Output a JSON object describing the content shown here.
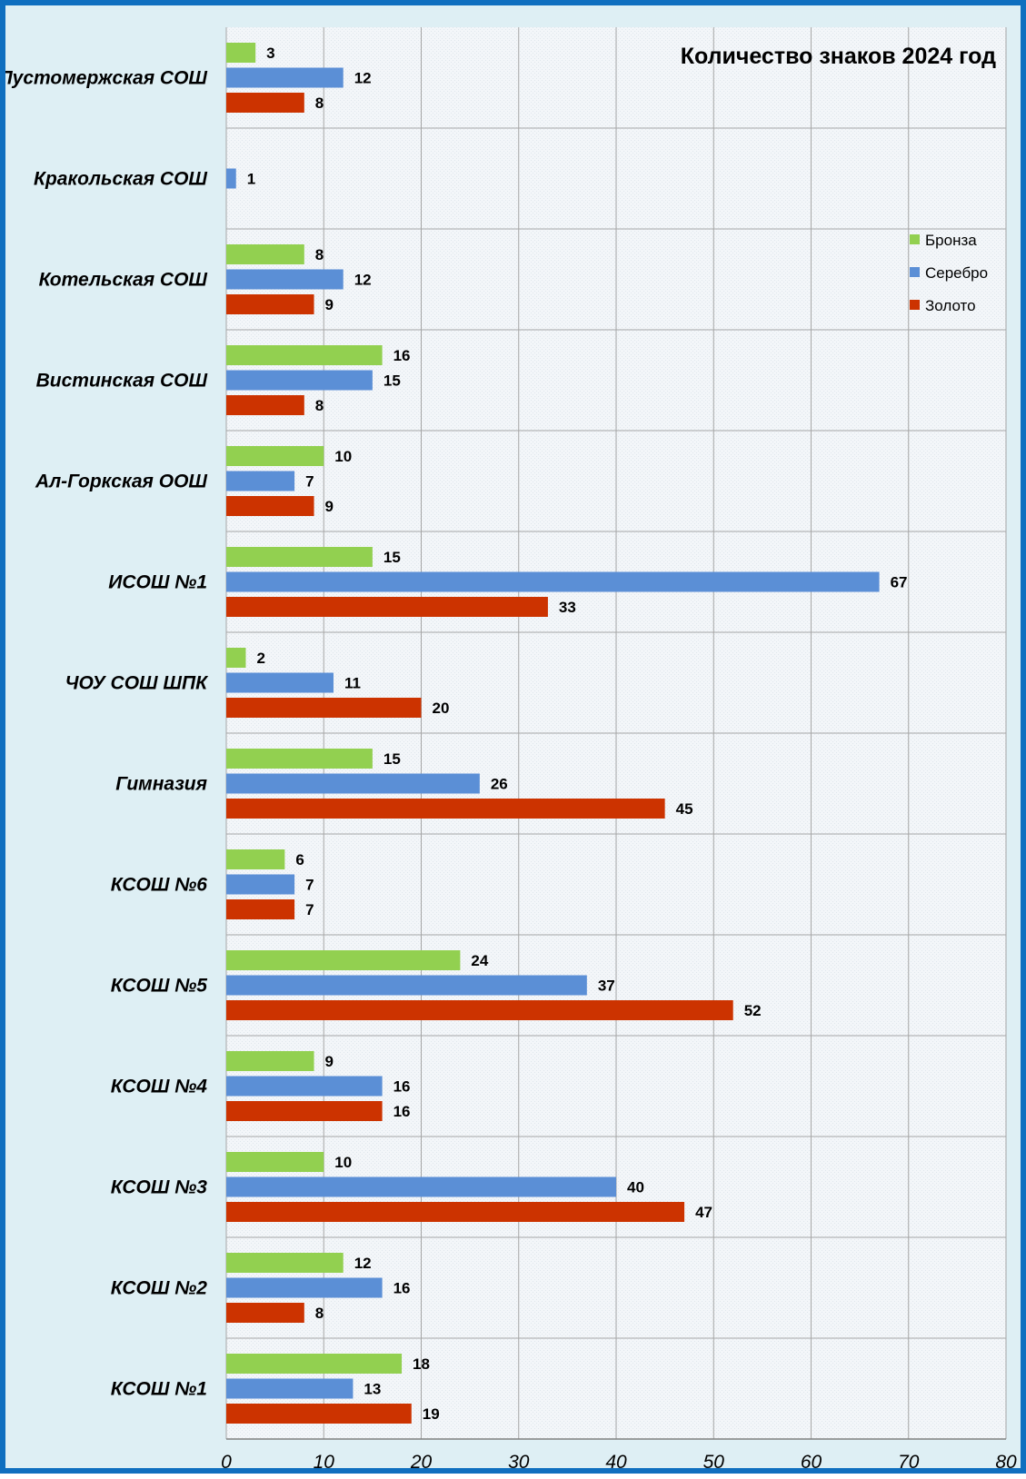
{
  "chart_data": {
    "type": "bar",
    "orientation": "horizontal",
    "title": "Количество знаков 2024 год",
    "xlabel": "",
    "ylabel": "",
    "xlim": [
      0,
      80
    ],
    "x_ticks": [
      0,
      10,
      20,
      30,
      40,
      50,
      60,
      70,
      80
    ],
    "grid": true,
    "legend_position": "right",
    "categories": [
      "КСОШ №1",
      "КСОШ №2",
      "КСОШ №3",
      "КСОШ №4",
      "КСОШ №5",
      "КСОШ №6",
      "Гимназия",
      "ЧОУ СОШ ШПК",
      "ИСОШ №1",
      "Ал-Горкская ООШ",
      "Вистинская  СОШ",
      "Котельская СОШ",
      "Кракольская СОШ",
      "Пустомержская  СОШ"
    ],
    "series": [
      {
        "name": "Золото",
        "color": "#cc3300",
        "values": [
          19,
          8,
          47,
          16,
          52,
          7,
          45,
          20,
          33,
          9,
          8,
          9,
          null,
          8
        ]
      },
      {
        "name": "Серебро",
        "color": "#5b8fd6",
        "values": [
          13,
          16,
          40,
          16,
          37,
          7,
          26,
          11,
          67,
          7,
          15,
          12,
          1,
          12
        ]
      },
      {
        "name": "Бронза",
        "color": "#92d050",
        "values": [
          18,
          12,
          10,
          9,
          24,
          6,
          15,
          2,
          15,
          10,
          16,
          8,
          null,
          3
        ]
      }
    ],
    "legend_order": [
      "Бронза",
      "Серебро",
      "Золото"
    ]
  }
}
